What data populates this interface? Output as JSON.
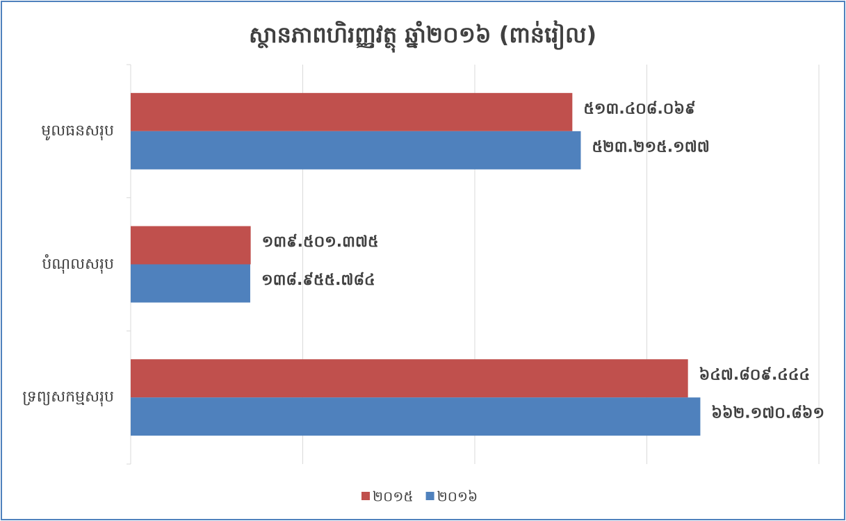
{
  "chart_data": {
    "type": "hbar",
    "title": "ស្ថានភាពហិរញ្ញវត្ថុ ឆ្នាំ២០១៦ (ពាន់រៀល)",
    "categories": [
      "មូលធនសរុប",
      "បំណុលសរុប",
      "ទ្រព្យសកម្មសរុប"
    ],
    "series": [
      {
        "name": "២០១៥",
        "color": "#c0504d",
        "values": [
          513408069,
          139501375,
          647809444
        ],
        "value_labels": [
          "៥១៣.៤០៨.០៦៩",
          "១៣៩.៥០១.៣៧៥",
          "៦៤៧.៨០៩.៤៤៤"
        ]
      },
      {
        "name": "២០១៦",
        "color": "#4f81bd",
        "values": [
          523215177,
          138955784,
          662170861
        ],
        "value_labels": [
          "៥២៣.២១៥.១៧៧",
          "១៣៨.៩៥៥.៧៨៤",
          "៦៦២.១៧០.៨៦១"
        ]
      }
    ],
    "xlim": [
      0,
      800000000
    ],
    "xticks": [
      0,
      200000000,
      400000000,
      600000000,
      800000000
    ],
    "grid": true,
    "legend": "bottom"
  }
}
